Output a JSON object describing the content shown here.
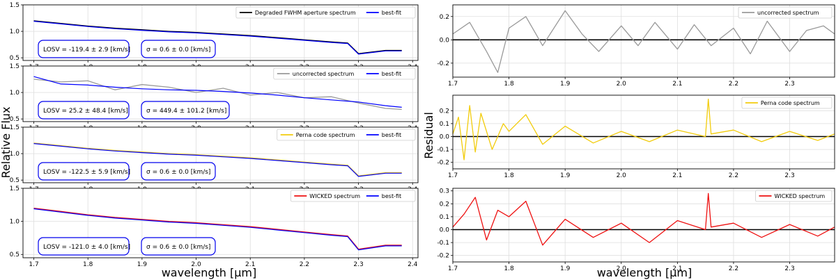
{
  "figure": {
    "left_ylabel": "Relative Flux",
    "right_ylabel": "Residual",
    "xlabel": "wavelength [μm]"
  },
  "chart_data": [
    {
      "type": "line",
      "panel": "left-1",
      "xlim": [
        1.68,
        2.41
      ],
      "ylim": [
        0.45,
        1.5
      ],
      "xticks": [
        1.7,
        1.8,
        1.9,
        2.0,
        2.1,
        2.2,
        2.3,
        2.4
      ],
      "yticks": [
        0.5,
        1.0,
        1.5
      ],
      "grid": true,
      "legend": "top-right",
      "series": [
        {
          "name": "Degraded FWHM aperture spectrum",
          "color": "#000000",
          "x": [
            1.7,
            1.75,
            1.8,
            1.85,
            1.9,
            1.95,
            2.0,
            2.05,
            2.1,
            2.15,
            2.2,
            2.25,
            2.28,
            2.3,
            2.35,
            2.38
          ],
          "y": [
            1.2,
            1.15,
            1.1,
            1.06,
            1.03,
            1.0,
            0.98,
            0.95,
            0.92,
            0.88,
            0.84,
            0.8,
            0.78,
            0.58,
            0.64,
            0.64
          ]
        },
        {
          "name": "best-fit",
          "color": "#0000ff",
          "x": [
            1.7,
            1.75,
            1.8,
            1.85,
            1.9,
            1.95,
            2.0,
            2.05,
            2.1,
            2.15,
            2.2,
            2.25,
            2.28,
            2.3,
            2.35,
            2.38
          ],
          "y": [
            1.19,
            1.14,
            1.09,
            1.05,
            1.02,
            0.99,
            0.97,
            0.94,
            0.91,
            0.87,
            0.83,
            0.79,
            0.77,
            0.57,
            0.63,
            0.63
          ]
        }
      ],
      "annotations": [
        "LOSV = -119.4 ± 2.9 [km/s]",
        "σ = 0.6 ± 0.0 [km/s]"
      ]
    },
    {
      "type": "line",
      "panel": "left-2",
      "xlim": [
        1.68,
        2.41
      ],
      "ylim": [
        0.45,
        1.5
      ],
      "xticks": [
        1.7,
        1.8,
        1.9,
        2.0,
        2.1,
        2.2,
        2.3,
        2.4
      ],
      "yticks": [
        0.5,
        1.0,
        1.5
      ],
      "grid": true,
      "legend": "top-right",
      "series": [
        {
          "name": "uncorrected spectrum",
          "color": "#999999",
          "x": [
            1.7,
            1.75,
            1.8,
            1.85,
            1.9,
            1.95,
            2.0,
            2.05,
            2.1,
            2.15,
            2.2,
            2.25,
            2.3,
            2.35,
            2.38
          ],
          "y": [
            1.25,
            1.2,
            1.22,
            1.05,
            1.15,
            1.1,
            1.0,
            1.08,
            0.95,
            1.0,
            0.9,
            0.92,
            0.8,
            0.7,
            0.68
          ]
        },
        {
          "name": "best-fit",
          "color": "#0000ff",
          "x": [
            1.7,
            1.75,
            1.8,
            1.85,
            1.9,
            1.95,
            2.0,
            2.05,
            2.1,
            2.15,
            2.2,
            2.25,
            2.3,
            2.35,
            2.38
          ],
          "y": [
            1.3,
            1.16,
            1.14,
            1.1,
            1.07,
            1.05,
            1.04,
            1.02,
            0.99,
            0.95,
            0.9,
            0.86,
            0.82,
            0.75,
            0.72
          ]
        }
      ],
      "annotations": [
        "LOSV = 25.2 ± 48.4 [km/s]",
        "σ = 449.4 ± 101.2 [km/s]"
      ]
    },
    {
      "type": "line",
      "panel": "left-3",
      "xlim": [
        1.68,
        2.41
      ],
      "ylim": [
        0.45,
        1.5
      ],
      "xticks": [
        1.7,
        1.8,
        1.9,
        2.0,
        2.1,
        2.2,
        2.3,
        2.4
      ],
      "yticks": [
        0.5,
        1.0,
        1.5
      ],
      "grid": true,
      "legend": "top-right",
      "series": [
        {
          "name": "Perna code spectrum",
          "color": "#f2cc0c",
          "x": [
            1.7,
            1.75,
            1.8,
            1.85,
            1.9,
            1.95,
            2.0,
            2.05,
            2.1,
            2.15,
            2.2,
            2.25,
            2.28,
            2.3,
            2.35,
            2.38
          ],
          "y": [
            1.2,
            1.15,
            1.1,
            1.06,
            1.03,
            1.0,
            0.98,
            0.95,
            0.92,
            0.88,
            0.84,
            0.8,
            0.78,
            0.58,
            0.64,
            0.64
          ]
        },
        {
          "name": "best-fit",
          "color": "#0000ff",
          "x": [
            1.7,
            1.75,
            1.8,
            1.85,
            1.9,
            1.95,
            2.0,
            2.05,
            2.1,
            2.15,
            2.2,
            2.25,
            2.28,
            2.3,
            2.35,
            2.38
          ],
          "y": [
            1.19,
            1.14,
            1.09,
            1.05,
            1.02,
            0.99,
            0.97,
            0.94,
            0.91,
            0.87,
            0.83,
            0.79,
            0.77,
            0.57,
            0.63,
            0.63
          ]
        }
      ],
      "annotations": [
        "LOSV = -122.5 ± 5.9 [km/s]",
        "σ = 0.6 ± 0.0 [km/s]"
      ]
    },
    {
      "type": "line",
      "panel": "left-4",
      "xlim": [
        1.68,
        2.41
      ],
      "ylim": [
        0.45,
        1.5
      ],
      "xticks": [
        1.7,
        1.8,
        1.9,
        2.0,
        2.1,
        2.2,
        2.3,
        2.4
      ],
      "yticks": [
        0.5,
        1.0,
        1.5
      ],
      "grid": true,
      "legend": "top-right",
      "series": [
        {
          "name": "WICKED spectrum",
          "color": "#ee1111",
          "x": [
            1.7,
            1.75,
            1.8,
            1.85,
            1.9,
            1.95,
            2.0,
            2.05,
            2.1,
            2.15,
            2.2,
            2.25,
            2.28,
            2.3,
            2.35,
            2.38
          ],
          "y": [
            1.2,
            1.15,
            1.1,
            1.06,
            1.03,
            1.0,
            0.98,
            0.95,
            0.92,
            0.88,
            0.84,
            0.8,
            0.78,
            0.58,
            0.64,
            0.64
          ]
        },
        {
          "name": "best-fit",
          "color": "#0000ff",
          "x": [
            1.7,
            1.75,
            1.8,
            1.85,
            1.9,
            1.95,
            2.0,
            2.05,
            2.1,
            2.15,
            2.2,
            2.25,
            2.28,
            2.3,
            2.35,
            2.38
          ],
          "y": [
            1.19,
            1.14,
            1.09,
            1.05,
            1.02,
            0.99,
            0.97,
            0.94,
            0.91,
            0.87,
            0.83,
            0.79,
            0.77,
            0.57,
            0.63,
            0.63
          ]
        }
      ],
      "annotations": [
        "LOSV = -121.0 ± 4.0 [km/s]",
        "σ = 0.6 ± 0.0 [km/s]"
      ]
    },
    {
      "type": "line",
      "panel": "right-1",
      "xlim": [
        1.7,
        2.38
      ],
      "ylim": [
        -0.32,
        0.3
      ],
      "xticks": [
        1.7,
        1.8,
        1.9,
        2.0,
        2.1,
        2.2,
        2.3
      ],
      "yticks": [
        -0.2,
        0.0,
        0.2
      ],
      "grid": true,
      "legend": "top-right",
      "zero_line": true,
      "series": [
        {
          "name": "uncorrected spectrum",
          "color": "#999999",
          "x": [
            1.7,
            1.73,
            1.76,
            1.78,
            1.8,
            1.83,
            1.86,
            1.9,
            1.93,
            1.96,
            2.0,
            2.03,
            2.06,
            2.1,
            2.13,
            2.16,
            2.2,
            2.23,
            2.26,
            2.3,
            2.33,
            2.36,
            2.38
          ],
          "y": [
            0.05,
            0.15,
            -0.1,
            -0.28,
            0.1,
            0.2,
            -0.05,
            0.25,
            0.05,
            -0.1,
            0.12,
            -0.05,
            0.15,
            -0.08,
            0.13,
            -0.05,
            0.1,
            -0.12,
            0.16,
            -0.1,
            0.08,
            0.12,
            0.05
          ]
        }
      ]
    },
    {
      "type": "line",
      "panel": "right-2",
      "xlim": [
        1.7,
        2.38
      ],
      "ylim": [
        -0.25,
        0.32
      ],
      "xticks": [
        1.7,
        1.8,
        1.9,
        2.0,
        2.1,
        2.2,
        2.3
      ],
      "yticks": [
        -0.2,
        -0.1,
        0.0,
        0.1,
        0.2
      ],
      "grid": true,
      "legend": "top-right",
      "zero_line": true,
      "series": [
        {
          "name": "Perna code spectrum",
          "color": "#f2cc0c",
          "x": [
            1.7,
            1.71,
            1.72,
            1.73,
            1.74,
            1.75,
            1.77,
            1.79,
            1.8,
            1.83,
            1.86,
            1.9,
            1.95,
            2.0,
            2.05,
            2.1,
            2.15,
            2.155,
            2.16,
            2.2,
            2.25,
            2.3,
            2.35,
            2.38
          ],
          "y": [
            0.02,
            0.15,
            -0.18,
            0.24,
            -0.12,
            0.18,
            -0.1,
            0.1,
            0.04,
            0.17,
            -0.06,
            0.08,
            -0.05,
            0.04,
            -0.04,
            0.05,
            0.0,
            0.29,
            0.02,
            0.05,
            -0.04,
            0.04,
            -0.03,
            0.02
          ]
        }
      ]
    },
    {
      "type": "line",
      "panel": "right-3",
      "xlim": [
        1.7,
        2.38
      ],
      "ylim": [
        -0.25,
        0.32
      ],
      "xticks": [
        1.7,
        1.8,
        1.9,
        2.0,
        2.1,
        2.2,
        2.3
      ],
      "yticks": [
        -0.2,
        -0.1,
        0.0,
        0.1,
        0.2,
        0.3
      ],
      "grid": true,
      "legend": "top-right",
      "zero_line": true,
      "series": [
        {
          "name": "WICKED spectrum",
          "color": "#ee1111",
          "x": [
            1.7,
            1.72,
            1.74,
            1.76,
            1.78,
            1.8,
            1.83,
            1.86,
            1.9,
            1.95,
            2.0,
            2.05,
            2.1,
            2.15,
            2.155,
            2.16,
            2.2,
            2.25,
            2.3,
            2.35,
            2.38
          ],
          "y": [
            0.02,
            0.12,
            0.25,
            -0.08,
            0.15,
            0.1,
            0.22,
            -0.12,
            0.08,
            -0.06,
            0.05,
            -0.1,
            0.07,
            0.0,
            0.28,
            0.02,
            0.05,
            -0.06,
            0.04,
            -0.05,
            0.02
          ]
        }
      ]
    }
  ]
}
